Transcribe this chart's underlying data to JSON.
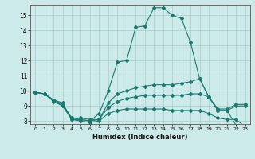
{
  "xlabel": "Humidex (Indice chaleur)",
  "xlim": [
    -0.5,
    23.5
  ],
  "ylim": [
    7.8,
    15.7
  ],
  "yticks": [
    8,
    9,
    10,
    11,
    12,
    13,
    14,
    15
  ],
  "xticks": [
    0,
    1,
    2,
    3,
    4,
    5,
    6,
    7,
    8,
    9,
    10,
    11,
    12,
    13,
    14,
    15,
    16,
    17,
    18,
    19,
    20,
    21,
    22,
    23
  ],
  "bg_color": "#cceaea",
  "line_color": "#1a7a6e",
  "grid_color": "#aacccc",
  "lines": [
    {
      "x": [
        0,
        1,
        2,
        3,
        4,
        5,
        6,
        7,
        8,
        9,
        10,
        11,
        12,
        13,
        14,
        15,
        16,
        17,
        18,
        19,
        20,
        21,
        22,
        23
      ],
      "y": [
        9.9,
        9.8,
        9.4,
        9.2,
        8.1,
        8.1,
        8.0,
        8.5,
        10.0,
        11.9,
        12.0,
        14.2,
        14.3,
        15.5,
        15.5,
        15.0,
        14.8,
        13.2,
        10.8,
        9.6,
        8.7,
        8.7,
        7.7,
        7.5
      ]
    },
    {
      "x": [
        0,
        1,
        2,
        3,
        4,
        5,
        6,
        7,
        8,
        9,
        10,
        11,
        12,
        13,
        14,
        15,
        16,
        17,
        18,
        19,
        20,
        21,
        22,
        23
      ],
      "y": [
        9.9,
        9.8,
        9.4,
        9.1,
        8.2,
        8.2,
        8.1,
        8.1,
        9.2,
        9.8,
        10.0,
        10.2,
        10.3,
        10.4,
        10.4,
        10.4,
        10.5,
        10.6,
        10.8,
        9.6,
        8.7,
        8.7,
        9.0,
        9.0
      ]
    },
    {
      "x": [
        0,
        1,
        2,
        3,
        4,
        5,
        6,
        7,
        8,
        9,
        10,
        11,
        12,
        13,
        14,
        15,
        16,
        17,
        18,
        19,
        20,
        21,
        22,
        23
      ],
      "y": [
        9.9,
        9.8,
        9.4,
        9.0,
        8.2,
        8.1,
        8.0,
        8.1,
        8.9,
        9.3,
        9.5,
        9.6,
        9.7,
        9.7,
        9.7,
        9.7,
        9.7,
        9.8,
        9.8,
        9.6,
        8.8,
        8.8,
        9.1,
        9.1
      ]
    },
    {
      "x": [
        0,
        1,
        2,
        3,
        4,
        5,
        6,
        7,
        8,
        9,
        10,
        11,
        12,
        13,
        14,
        15,
        16,
        17,
        18,
        19,
        20,
        21,
        22,
        23
      ],
      "y": [
        9.9,
        9.8,
        9.3,
        9.0,
        8.1,
        8.0,
        7.9,
        8.0,
        8.5,
        8.7,
        8.8,
        8.8,
        8.8,
        8.8,
        8.8,
        8.7,
        8.7,
        8.7,
        8.7,
        8.5,
        8.2,
        8.1,
        8.1,
        7.6
      ]
    }
  ]
}
